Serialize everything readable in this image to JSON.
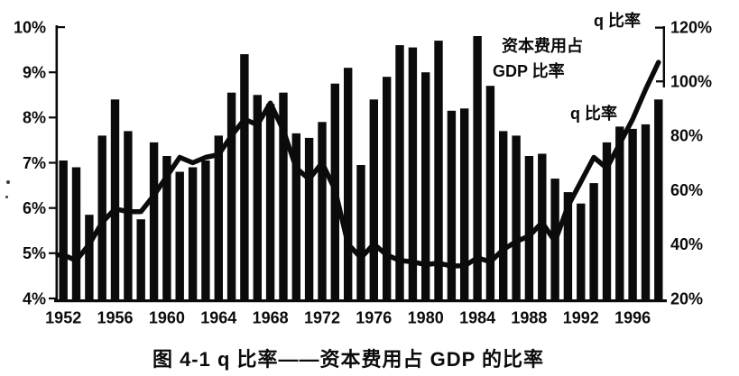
{
  "figure": {
    "caption": "图 4-1  q 比率——资本费用占 GDP 的比率",
    "ink_color": "#0b0b0b",
    "background_color": "#ffffff"
  },
  "annotations": {
    "bar_label_line1": "资本费用占",
    "bar_label_line2": "GDP 比率",
    "line_label": "q 比率",
    "right_axis_title": "q 比率"
  },
  "chart_data": {
    "type": "combo-bar-line",
    "title": "图 4-1  q 比率——资本费用占 GDP 的比率",
    "grid": false,
    "legend": "in-chart text labels",
    "categories": [
      1952,
      1953,
      1954,
      1955,
      1956,
      1957,
      1958,
      1959,
      1960,
      1961,
      1962,
      1963,
      1964,
      1965,
      1966,
      1967,
      1968,
      1969,
      1970,
      1971,
      1972,
      1973,
      1974,
      1975,
      1976,
      1977,
      1978,
      1979,
      1980,
      1981,
      1982,
      1983,
      1984,
      1985,
      1986,
      1987,
      1988,
      1989,
      1990,
      1991,
      1992,
      1993,
      1994,
      1995,
      1996,
      1997,
      1998
    ],
    "series": [
      {
        "name": "资本费用占GDP比率",
        "type": "bar",
        "axis": "left",
        "unit": "% of GDP",
        "color": "#0b0b0b",
        "values": [
          7.05,
          6.9,
          5.85,
          7.6,
          8.4,
          7.7,
          5.75,
          7.45,
          7.15,
          6.8,
          6.9,
          7.05,
          7.6,
          8.55,
          9.4,
          8.5,
          8.3,
          8.55,
          7.65,
          7.55,
          7.9,
          8.75,
          9.1,
          6.95,
          8.4,
          8.9,
          9.6,
          9.55,
          9.0,
          9.7,
          8.15,
          8.2,
          9.8,
          8.7,
          7.7,
          7.6,
          7.15,
          7.2,
          6.65,
          6.35,
          6.1,
          6.55,
          7.45,
          7.8,
          7.75,
          7.85,
          8.4
        ]
      },
      {
        "name": "q比率",
        "type": "line",
        "axis": "right",
        "unit": "%",
        "color": "#0b0b0b",
        "values": [
          36,
          34,
          40,
          48,
          53,
          52,
          52,
          58,
          65,
          72,
          70,
          72,
          73,
          80,
          86,
          84,
          92,
          82,
          68,
          64,
          70,
          60,
          40,
          35,
          40,
          36,
          34,
          33.5,
          32.5,
          33,
          32,
          32,
          35,
          33.5,
          38,
          41,
          43,
          48,
          41,
          54,
          63,
          72,
          68,
          77,
          86,
          97,
          107
        ]
      }
    ],
    "left_axis": {
      "range": [
        4,
        10
      ],
      "tick_labels_top_to_bottom": [
        "10%",
        "9%",
        "8%",
        "7%",
        "6%",
        "5%",
        "4%"
      ]
    },
    "right_axis": {
      "range": [
        20,
        120
      ],
      "tick_labels_top_to_bottom": [
        "120%",
        "100%",
        "80%",
        "60%",
        "40%",
        "20%"
      ]
    },
    "x_axis": {
      "tick_labels": [
        "1952",
        "1956",
        "1960",
        "1964",
        "1968",
        "1972",
        "1976",
        "1980",
        "1984",
        "1988",
        "1992",
        "1996"
      ],
      "tick_step_years": 4
    }
  }
}
